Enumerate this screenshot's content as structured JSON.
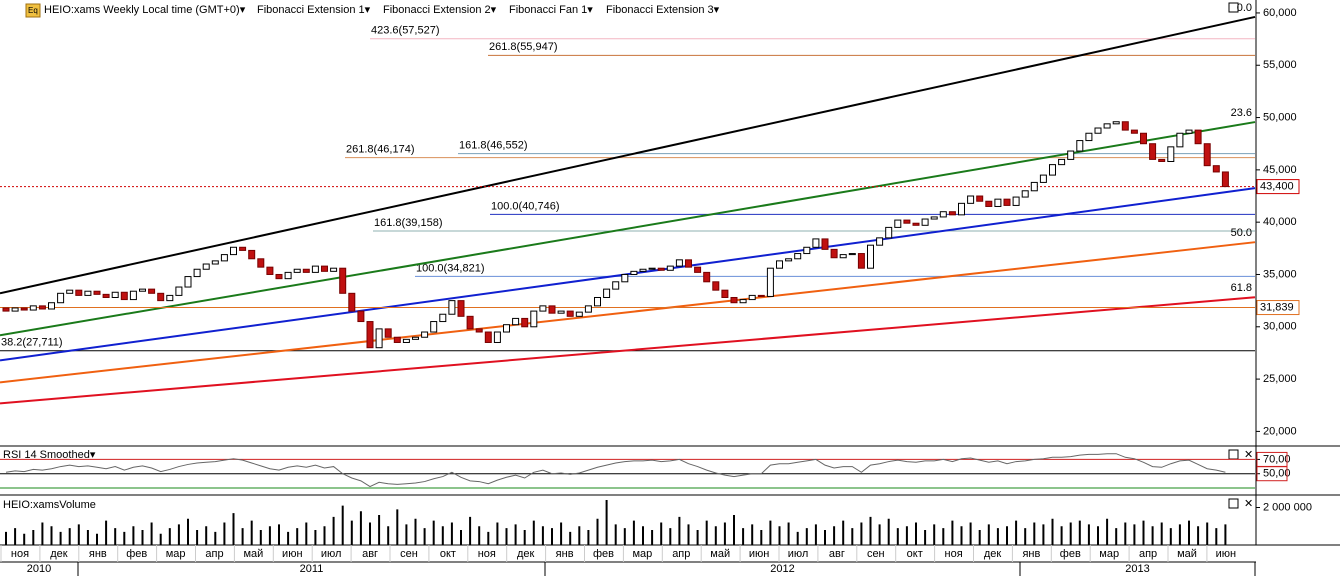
{
  "toolbar": {
    "icon": "Eq",
    "symbol": "HEIO:xams Weekly Local time (GMT+0)▾",
    "studies": [
      "Fibonacci Extension 1▾",
      "Fibonacci Extension 2▾",
      "Fibonacci Fan 1▾",
      "Fibonacci Extension 3▾"
    ]
  },
  "chart_data": [
    {
      "type": "candlestick",
      "ylim": [
        18700,
        60950
      ],
      "yticks": [
        {
          "value": 20000,
          "label": "20,000"
        },
        {
          "value": 25000,
          "label": "25,000"
        },
        {
          "value": 30000,
          "label": "30,000"
        },
        {
          "value": 35000,
          "label": "35,000"
        },
        {
          "value": 40000,
          "label": "40,000"
        },
        {
          "value": 45000,
          "label": "45,000"
        },
        {
          "value": 50000,
          "label": "50,000"
        },
        {
          "value": 55000,
          "label": "55,000"
        },
        {
          "value": 60000,
          "label": "60,000"
        }
      ],
      "first_open": 31800,
      "close": [
        31500,
        31800,
        31600,
        32000,
        31700,
        32300,
        33200,
        33500,
        33000,
        33400,
        33100,
        32800,
        33300,
        32600,
        33400,
        33600,
        33200,
        32500,
        33000,
        33800,
        34800,
        35500,
        36000,
        36300,
        36900,
        37600,
        37300,
        36500,
        35700,
        35000,
        34600,
        35200,
        35500,
        35200,
        35800,
        35300,
        35600,
        33200,
        31500,
        30500,
        28000,
        29800,
        29000,
        28500,
        28800,
        29000,
        29500,
        30500,
        31200,
        32500,
        31000,
        29800,
        29500,
        28500,
        29500,
        30200,
        30800,
        30000,
        31500,
        32000,
        31300,
        31500,
        31000,
        31400,
        32000,
        32800,
        33600,
        34300,
        35000,
        35300,
        35500,
        35600,
        35400,
        35800,
        36400,
        35700,
        35200,
        34300,
        33500,
        32800,
        32300,
        32600,
        33000,
        32900,
        35600,
        36300,
        36500,
        37000,
        37600,
        38400,
        37400,
        36600,
        36900,
        37000,
        35600,
        37800,
        38500,
        39500,
        40200,
        39900,
        39700,
        40300,
        40500,
        41000,
        40700,
        41800,
        42500,
        42000,
        41500,
        42200,
        41600,
        42400,
        43000,
        43800,
        44500,
        45500,
        46000,
        46800,
        47800,
        48500,
        49000,
        49400,
        49600,
        48800,
        48500,
        47500,
        46000,
        45800,
        47200,
        48500,
        48800,
        47500,
        45400,
        44800,
        43400
      ],
      "fib_levels": [
        {
          "label": "423.6(57,527)",
          "value": 57527,
          "color": "#f4b6c2"
        },
        {
          "label": "261.8(55,947)",
          "value": 55947,
          "color": "#c8733a"
        },
        {
          "label": "161.8(46,552)",
          "value": 46552,
          "color": "#7aa0b8"
        },
        {
          "label": "261.8(46,174)",
          "value": 46174,
          "color": "#d9905a"
        },
        {
          "label": "100.0(40,746)",
          "value": 40746,
          "color": "#2030c0"
        },
        {
          "label": "161.8(39,158)",
          "value": 39158,
          "color": "#8fb0b0"
        },
        {
          "label": "100.0(34,821)",
          "value": 34821,
          "color": "#6a8fd8"
        },
        {
          "label": "38.2(27,711)",
          "value": 27711,
          "color": "#000000"
        }
      ],
      "fan": [
        {
          "label": "0.0",
          "color": "#000000",
          "start": 33206,
          "end": 59617
        },
        {
          "label": "23.6",
          "color": "#1a7a1a",
          "start": 29187,
          "end": 49569
        },
        {
          "color": "#1020d0",
          "start": 26794,
          "end": 43254
        },
        {
          "label": "50.0",
          "color": "#f06010",
          "start": 24689,
          "end": 38086
        },
        {
          "label": "61.8",
          "color": "#e01020",
          "start": 22679,
          "end": 32823
        }
      ],
      "price_lines": [
        {
          "label": "43,400",
          "value": 43400,
          "color": "#d00000"
        },
        {
          "label": "31,839",
          "value": 31839,
          "color": "#e07020"
        }
      ]
    },
    {
      "type": "line",
      "title": "RSI 14 Smoothed▾",
      "ylim": [
        23,
        86
      ],
      "yticks": [
        {
          "value": 70,
          "label": "70,00"
        },
        {
          "value": 50,
          "label": "50,00"
        }
      ],
      "level": 30,
      "values": [
        52,
        54,
        53,
        56,
        55,
        57,
        60,
        62,
        60,
        61,
        59,
        57,
        60,
        55,
        59,
        61,
        58,
        53,
        56,
        60,
        63,
        65,
        66,
        67,
        69,
        71,
        69,
        65,
        61,
        57,
        55,
        59,
        61,
        59,
        62,
        58,
        60,
        50,
        44,
        40,
        32,
        38,
        36,
        35,
        36,
        37,
        39,
        43,
        46,
        52,
        45,
        40,
        39,
        36,
        41,
        45,
        48,
        44,
        52,
        55,
        50,
        51,
        49,
        51,
        55,
        59,
        62,
        65,
        67,
        68,
        68,
        69,
        67,
        68,
        70,
        64,
        60,
        55,
        51,
        48,
        46,
        48,
        50,
        50,
        62,
        64,
        64,
        66,
        68,
        70,
        62,
        58,
        60,
        60,
        52,
        62,
        64,
        67,
        69,
        67,
        66,
        68,
        68,
        70,
        67,
        71,
        72,
        69,
        66,
        68,
        64,
        67,
        68,
        70,
        71,
        73,
        73,
        74,
        76,
        77,
        77,
        78,
        78,
        73,
        71,
        66,
        60,
        59,
        64,
        68,
        69,
        63,
        57,
        55,
        52
      ]
    },
    {
      "type": "bar",
      "title": "HEIO:xamsVolume",
      "ylim": [
        0,
        2560000
      ],
      "yticks": [
        {
          "value": 2000000,
          "label": "2 000 000"
        }
      ],
      "values": [
        700000,
        900000,
        600000,
        800000,
        1200000,
        1000000,
        700000,
        900000,
        1100000,
        800000,
        600000,
        1300000,
        900000,
        700000,
        1000000,
        800000,
        1200000,
        600000,
        900000,
        1100000,
        1400000,
        800000,
        1000000,
        700000,
        1200000,
        1700000,
        900000,
        1300000,
        800000,
        1000000,
        1100000,
        700000,
        900000,
        1200000,
        800000,
        1000000,
        1500000,
        2100000,
        1300000,
        1800000,
        1200000,
        1600000,
        1000000,
        1900000,
        1100000,
        1400000,
        900000,
        1300000,
        1000000,
        1200000,
        800000,
        1500000,
        1000000,
        700000,
        1200000,
        900000,
        1100000,
        800000,
        1300000,
        1000000,
        900000,
        1200000,
        700000,
        1000000,
        800000,
        1400000,
        2400000,
        1100000,
        900000,
        1300000,
        1000000,
        800000,
        1200000,
        900000,
        1500000,
        1100000,
        800000,
        1300000,
        1000000,
        1200000,
        1600000,
        900000,
        1100000,
        800000,
        1300000,
        1000000,
        1200000,
        700000,
        900000,
        1100000,
        800000,
        1000000,
        1300000,
        900000,
        1200000,
        1500000,
        1100000,
        1400000,
        900000,
        1000000,
        1200000,
        800000,
        1100000,
        900000,
        1300000,
        1000000,
        1200000,
        800000,
        1100000,
        900000,
        1000000,
        1300000,
        900000,
        1200000,
        1100000,
        1400000,
        1000000,
        1200000,
        1300000,
        1100000,
        1000000,
        1400000,
        900000,
        1200000,
        1100000,
        1300000,
        1000000,
        1200000,
        900000,
        1100000,
        1300000,
        1000000,
        1200000,
        900000,
        1100000
      ]
    }
  ],
  "months": [
    "ноя",
    "дек",
    "янв",
    "фев",
    "мар",
    "апр",
    "май",
    "июн",
    "июл",
    "авг",
    "сен",
    "окт",
    "ноя",
    "дек",
    "янв",
    "фев",
    "мар",
    "апр",
    "май",
    "июн",
    "июл",
    "авг",
    "сен",
    "окт",
    "ноя",
    "дек",
    "янв",
    "фев",
    "мар",
    "апр",
    "май",
    "июн"
  ],
  "years": [
    "2010",
    "2011",
    "2012",
    "2013"
  ]
}
